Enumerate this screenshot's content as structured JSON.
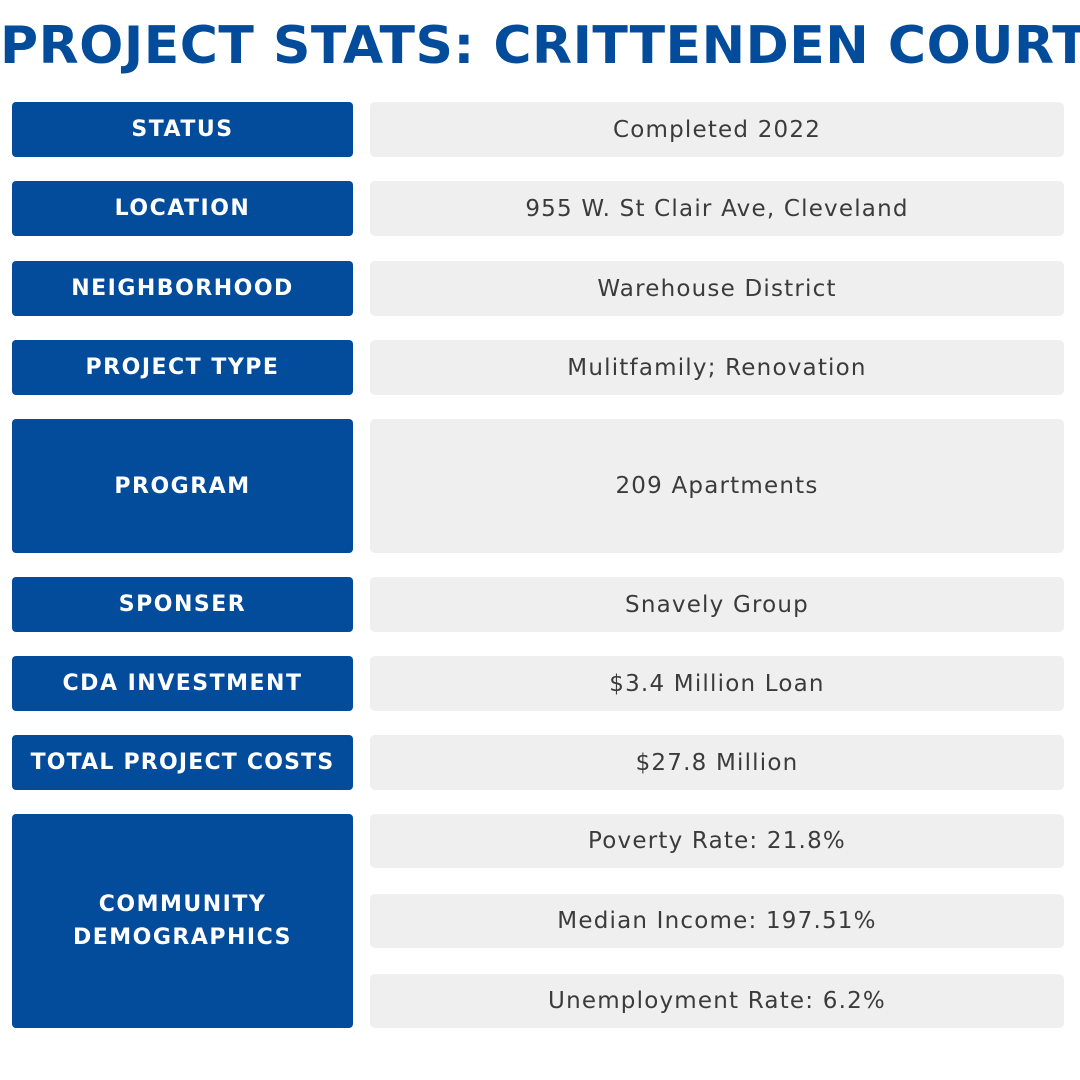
{
  "title": "PROJECT STATS: CRITTENDEN COURT",
  "rows": [
    {
      "label": "STATUS",
      "value": "Completed 2022"
    },
    {
      "label": "LOCATION",
      "value": "955 W. St Clair Ave, Cleveland"
    },
    {
      "label": "NEIGHBORHOOD",
      "value": "Warehouse District"
    },
    {
      "label": "PROJECT TYPE",
      "value": "Mulitfamily; Renovation"
    },
    {
      "label": "PROGRAM",
      "value": "209 Apartments"
    },
    {
      "label": "SPONSER",
      "value": "Snavely Group"
    },
    {
      "label": "CDA INVESTMENT",
      "value": "$3.4 Million Loan"
    },
    {
      "label": "TOTAL PROJECT COSTS",
      "value": "$27.8 Million"
    }
  ],
  "demographics": {
    "label_line1": "COMMUNITY",
    "label_line2": "DEMOGRAPHICS",
    "values": [
      "Poverty Rate: 21.8%",
      "Median Income: 197.51%",
      "Unemployment Rate: 6.2%"
    ]
  },
  "colors": {
    "brand_blue": "#034c9c",
    "value_bg": "#efefef",
    "value_text": "#3b3b3b"
  }
}
